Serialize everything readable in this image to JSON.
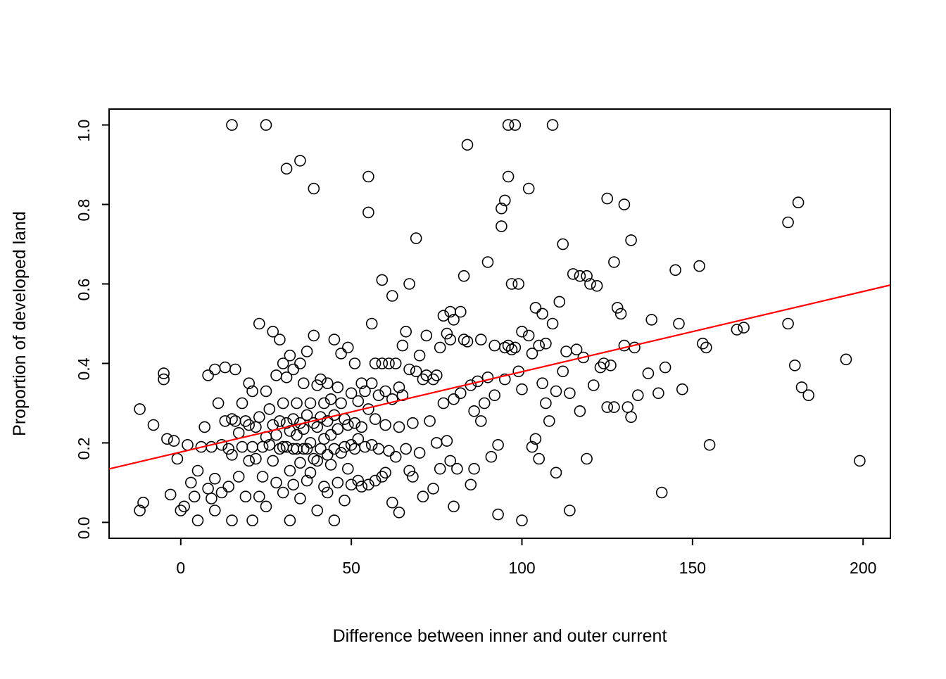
{
  "figure": {
    "background": "#ffffff"
  },
  "chart_data": {
    "type": "scatter",
    "title": "",
    "xlabel": "Difference between inner and outer current",
    "ylabel": "Proportion of developed land",
    "xlim": [
      -21,
      208
    ],
    "ylim": [
      -0.04,
      1.04
    ],
    "grid": false,
    "legend": "none",
    "xticks": {
      "values": [
        0,
        50,
        100,
        150,
        200
      ],
      "labels": [
        "0",
        "50",
        "100",
        "150",
        "200"
      ]
    },
    "yticks": {
      "values": [
        0.0,
        0.2,
        0.4,
        0.6,
        0.8,
        1.0
      ],
      "labels": [
        "0.0",
        "0.2",
        "0.4",
        "0.6",
        "0.8",
        "1.0"
      ]
    },
    "point_style": {
      "shape": "open-circle",
      "stroke": "#000000",
      "radius": 7.5
    },
    "fit_line": {
      "type": "linear",
      "intercept": 0.177,
      "slope": 0.00202,
      "color": "#FF0000"
    },
    "points": [
      [
        -12,
        0.285
      ],
      [
        -12,
        0.03
      ],
      [
        -11,
        0.05
      ],
      [
        -8,
        0.245
      ],
      [
        -5,
        0.375
      ],
      [
        -5,
        0.36
      ],
      [
        -4,
        0.21
      ],
      [
        -3,
        0.07
      ],
      [
        -2,
        0.205
      ],
      [
        -1,
        0.16
      ],
      [
        0,
        0.03
      ],
      [
        1,
        0.04
      ],
      [
        2,
        0.195
      ],
      [
        3,
        0.1
      ],
      [
        4,
        0.065
      ],
      [
        5,
        0.005
      ],
      [
        5,
        0.13
      ],
      [
        6,
        0.19
      ],
      [
        7,
        0.24
      ],
      [
        8,
        0.37
      ],
      [
        8,
        0.085
      ],
      [
        9,
        0.06
      ],
      [
        9,
        0.19
      ],
      [
        10,
        0.385
      ],
      [
        10,
        0.11
      ],
      [
        10,
        0.03
      ],
      [
        11,
        0.3
      ],
      [
        12,
        0.195
      ],
      [
        12,
        0.075
      ],
      [
        13,
        0.39
      ],
      [
        13,
        0.255
      ],
      [
        14,
        0.185
      ],
      [
        14,
        0.09
      ],
      [
        15,
        1.0
      ],
      [
        15,
        0.26
      ],
      [
        15,
        0.17
      ],
      [
        15,
        0.005
      ],
      [
        16,
        0.385
      ],
      [
        16,
        0.255
      ],
      [
        17,
        0.225
      ],
      [
        17,
        0.115
      ],
      [
        18,
        0.3
      ],
      [
        18,
        0.19
      ],
      [
        19,
        0.255
      ],
      [
        19,
        0.065
      ],
      [
        20,
        0.35
      ],
      [
        20,
        0.245
      ],
      [
        20,
        0.155
      ],
      [
        21,
        0.33
      ],
      [
        21,
        0.19
      ],
      [
        21,
        0.005
      ],
      [
        22,
        0.24
      ],
      [
        22,
        0.16
      ],
      [
        23,
        0.5
      ],
      [
        23,
        0.265
      ],
      [
        23,
        0.065
      ],
      [
        24,
        0.19
      ],
      [
        24,
        0.115
      ],
      [
        25,
        1.0
      ],
      [
        25,
        0.33
      ],
      [
        25,
        0.215
      ],
      [
        25,
        0.04
      ],
      [
        26,
        0.285
      ],
      [
        26,
        0.195
      ],
      [
        27,
        0.48
      ],
      [
        27,
        0.245
      ],
      [
        27,
        0.155
      ],
      [
        28,
        0.37
      ],
      [
        28,
        0.22
      ],
      [
        28,
        0.1
      ],
      [
        29,
        0.46
      ],
      [
        29,
        0.255
      ],
      [
        29,
        0.185
      ],
      [
        30,
        0.4
      ],
      [
        30,
        0.3
      ],
      [
        30,
        0.19
      ],
      [
        30,
        0.075
      ],
      [
        31,
        0.89
      ],
      [
        31,
        0.365
      ],
      [
        31,
        0.25
      ],
      [
        31,
        0.19
      ],
      [
        32,
        0.42
      ],
      [
        32,
        0.23
      ],
      [
        32,
        0.13
      ],
      [
        32,
        0.005
      ],
      [
        33,
        0.385
      ],
      [
        33,
        0.26
      ],
      [
        33,
        0.185
      ],
      [
        33,
        0.095
      ],
      [
        34,
        0.3
      ],
      [
        34,
        0.22
      ],
      [
        34,
        0.185
      ],
      [
        35,
        0.91
      ],
      [
        35,
        0.4
      ],
      [
        35,
        0.25
      ],
      [
        35,
        0.15
      ],
      [
        35,
        0.06
      ],
      [
        36,
        0.35
      ],
      [
        36,
        0.235
      ],
      [
        36,
        0.185
      ],
      [
        37,
        0.43
      ],
      [
        37,
        0.27
      ],
      [
        37,
        0.185
      ],
      [
        37,
        0.105
      ],
      [
        38,
        0.3
      ],
      [
        38,
        0.2
      ],
      [
        38,
        0.125
      ],
      [
        39,
        0.84
      ],
      [
        39,
        0.47
      ],
      [
        39,
        0.25
      ],
      [
        39,
        0.16
      ],
      [
        40,
        0.345
      ],
      [
        40,
        0.24
      ],
      [
        40,
        0.155
      ],
      [
        40,
        0.03
      ],
      [
        41,
        0.36
      ],
      [
        41,
        0.265
      ],
      [
        41,
        0.185
      ],
      [
        42,
        0.3
      ],
      [
        42,
        0.21
      ],
      [
        42,
        0.09
      ],
      [
        43,
        0.35
      ],
      [
        43,
        0.255
      ],
      [
        43,
        0.17
      ],
      [
        43,
        0.075
      ],
      [
        44,
        0.31
      ],
      [
        44,
        0.22
      ],
      [
        44,
        0.145
      ],
      [
        45,
        0.46
      ],
      [
        45,
        0.27
      ],
      [
        45,
        0.185
      ],
      [
        45,
        0.005
      ],
      [
        46,
        0.34
      ],
      [
        46,
        0.235
      ],
      [
        46,
        0.1
      ],
      [
        47,
        0.425
      ],
      [
        47,
        0.3
      ],
      [
        47,
        0.175
      ],
      [
        48,
        0.26
      ],
      [
        48,
        0.19
      ],
      [
        48,
        0.055
      ],
      [
        49,
        0.44
      ],
      [
        49,
        0.245
      ],
      [
        49,
        0.135
      ],
      [
        50,
        0.325
      ],
      [
        50,
        0.195
      ],
      [
        50,
        0.095
      ],
      [
        51,
        0.4
      ],
      [
        51,
        0.25
      ],
      [
        51,
        0.185
      ],
      [
        52,
        0.305
      ],
      [
        52,
        0.21
      ],
      [
        52,
        0.105
      ],
      [
        53,
        0.35
      ],
      [
        53,
        0.24
      ],
      [
        53,
        0.09
      ],
      [
        54,
        0.33
      ],
      [
        54,
        0.19
      ],
      [
        55,
        0.87
      ],
      [
        55,
        0.78
      ],
      [
        55,
        0.285
      ],
      [
        55,
        0.095
      ],
      [
        56,
        0.5
      ],
      [
        56,
        0.35
      ],
      [
        56,
        0.195
      ],
      [
        57,
        0.4
      ],
      [
        57,
        0.26
      ],
      [
        57,
        0.105
      ],
      [
        58,
        0.32
      ],
      [
        58,
        0.185
      ],
      [
        59,
        0.61
      ],
      [
        59,
        0.4
      ],
      [
        59,
        0.115
      ],
      [
        60,
        0.33
      ],
      [
        60,
        0.245
      ],
      [
        60,
        0.125
      ],
      [
        61,
        0.4
      ],
      [
        61,
        0.18
      ],
      [
        62,
        0.57
      ],
      [
        62,
        0.31
      ],
      [
        62,
        0.05
      ],
      [
        63,
        0.4
      ],
      [
        63,
        0.165
      ],
      [
        64,
        0.34
      ],
      [
        64,
        0.24
      ],
      [
        64,
        0.025
      ],
      [
        65,
        0.445
      ],
      [
        65,
        0.32
      ],
      [
        66,
        0.48
      ],
      [
        66,
        0.185
      ],
      [
        67,
        0.6
      ],
      [
        67,
        0.385
      ],
      [
        67,
        0.13
      ],
      [
        68,
        0.25
      ],
      [
        68,
        0.115
      ],
      [
        69,
        0.715
      ],
      [
        69,
        0.38
      ],
      [
        70,
        0.42
      ],
      [
        70,
        0.175
      ],
      [
        71,
        0.36
      ],
      [
        71,
        0.065
      ],
      [
        72,
        0.47
      ],
      [
        72,
        0.37
      ],
      [
        73,
        0.255
      ],
      [
        74,
        0.36
      ],
      [
        74,
        0.085
      ],
      [
        75,
        0.37
      ],
      [
        75,
        0.2
      ],
      [
        76,
        0.44
      ],
      [
        76,
        0.135
      ],
      [
        77,
        0.52
      ],
      [
        77,
        0.3
      ],
      [
        78,
        0.475
      ],
      [
        78,
        0.205
      ],
      [
        79,
        0.53
      ],
      [
        79,
        0.46
      ],
      [
        79,
        0.155
      ],
      [
        80,
        0.51
      ],
      [
        80,
        0.31
      ],
      [
        80,
        0.04
      ],
      [
        81,
        0.135
      ],
      [
        82,
        0.53
      ],
      [
        82,
        0.325
      ],
      [
        83,
        0.62
      ],
      [
        83,
        0.46
      ],
      [
        84,
        0.95
      ],
      [
        84,
        0.455
      ],
      [
        85,
        0.345
      ],
      [
        85,
        0.095
      ],
      [
        86,
        0.28
      ],
      [
        86,
        0.135
      ],
      [
        87,
        0.355
      ],
      [
        88,
        0.46
      ],
      [
        88,
        0.255
      ],
      [
        89,
        0.3
      ],
      [
        90,
        0.655
      ],
      [
        90,
        0.365
      ],
      [
        91,
        0.165
      ],
      [
        92,
        0.445
      ],
      [
        92,
        0.32
      ],
      [
        93,
        0.195
      ],
      [
        93,
        0.02
      ],
      [
        94,
        0.79
      ],
      [
        94,
        0.745
      ],
      [
        95,
        0.81
      ],
      [
        95,
        0.44
      ],
      [
        95,
        0.36
      ],
      [
        96,
        1.0
      ],
      [
        96,
        0.87
      ],
      [
        96,
        0.445
      ],
      [
        97,
        0.6
      ],
      [
        97,
        0.435
      ],
      [
        98,
        1.0
      ],
      [
        98,
        0.44
      ],
      [
        99,
        0.6
      ],
      [
        99,
        0.38
      ],
      [
        100,
        0.48
      ],
      [
        100,
        0.335
      ],
      [
        100,
        0.005
      ],
      [
        102,
        0.84
      ],
      [
        102,
        0.47
      ],
      [
        103,
        0.425
      ],
      [
        103,
        0.19
      ],
      [
        104,
        0.54
      ],
      [
        104,
        0.21
      ],
      [
        105,
        0.445
      ],
      [
        105,
        0.16
      ],
      [
        106,
        0.525
      ],
      [
        106,
        0.35
      ],
      [
        107,
        0.45
      ],
      [
        107,
        0.3
      ],
      [
        108,
        0.255
      ],
      [
        109,
        1.0
      ],
      [
        109,
        0.5
      ],
      [
        110,
        0.33
      ],
      [
        110,
        0.125
      ],
      [
        111,
        0.555
      ],
      [
        112,
        0.7
      ],
      [
        112,
        0.38
      ],
      [
        113,
        0.43
      ],
      [
        114,
        0.325
      ],
      [
        114,
        0.03
      ],
      [
        115,
        0.625
      ],
      [
        116,
        0.435
      ],
      [
        117,
        0.62
      ],
      [
        117,
        0.28
      ],
      [
        118,
        0.415
      ],
      [
        119,
        0.62
      ],
      [
        119,
        0.16
      ],
      [
        120,
        0.6
      ],
      [
        121,
        0.345
      ],
      [
        122,
        0.595
      ],
      [
        123,
        0.39
      ],
      [
        124,
        0.4
      ],
      [
        125,
        0.815
      ],
      [
        125,
        0.29
      ],
      [
        126,
        0.395
      ],
      [
        127,
        0.655
      ],
      [
        127,
        0.29
      ],
      [
        128,
        0.54
      ],
      [
        129,
        0.525
      ],
      [
        130,
        0.8
      ],
      [
        130,
        0.445
      ],
      [
        131,
        0.29
      ],
      [
        132,
        0.71
      ],
      [
        132,
        0.265
      ],
      [
        133,
        0.44
      ],
      [
        134,
        0.32
      ],
      [
        137,
        0.375
      ],
      [
        138,
        0.51
      ],
      [
        140,
        0.325
      ],
      [
        141,
        0.075
      ],
      [
        142,
        0.39
      ],
      [
        145,
        0.635
      ],
      [
        146,
        0.5
      ],
      [
        147,
        0.335
      ],
      [
        152,
        0.645
      ],
      [
        153,
        0.45
      ],
      [
        154,
        0.44
      ],
      [
        155,
        0.195
      ],
      [
        163,
        0.485
      ],
      [
        165,
        0.49
      ],
      [
        178,
        0.755
      ],
      [
        178,
        0.5
      ],
      [
        180,
        0.395
      ],
      [
        181,
        0.805
      ],
      [
        182,
        0.34
      ],
      [
        184,
        0.32
      ],
      [
        195,
        0.41
      ],
      [
        199,
        0.155
      ]
    ]
  }
}
